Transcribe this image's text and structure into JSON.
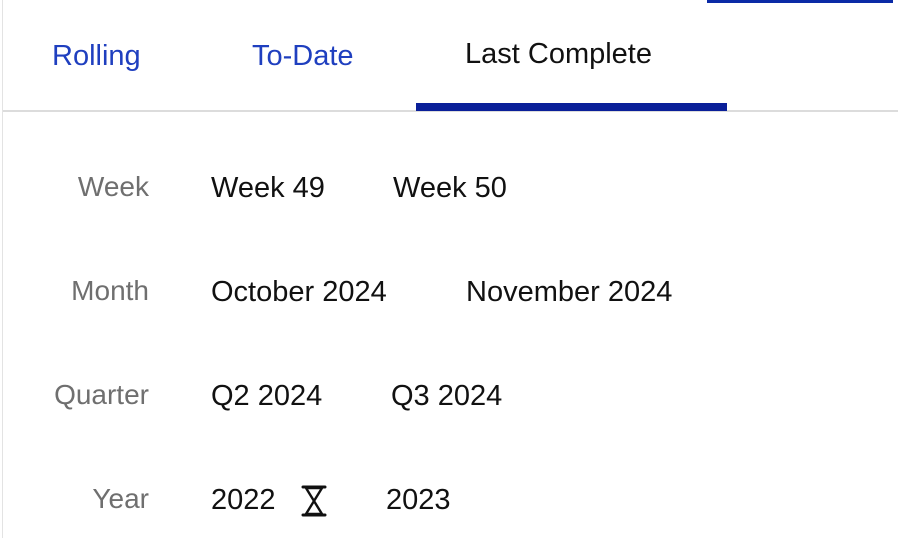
{
  "tabs": [
    {
      "label": "Rolling",
      "active": false
    },
    {
      "label": "To-Date",
      "active": false
    },
    {
      "label": "Last Complete",
      "active": true
    }
  ],
  "colors": {
    "accent": "#0a1f99",
    "tab_inactive": "#1f3fbf",
    "label_gray": "#6f6f6f"
  },
  "rows": {
    "week": {
      "label": "Week",
      "options": [
        "Week 49",
        "Week 50"
      ]
    },
    "month": {
      "label": "Month",
      "options": [
        "October 2024",
        "November 2024"
      ]
    },
    "quarter": {
      "label": "Quarter",
      "options": [
        "Q2 2024",
        "Q3 2024"
      ]
    },
    "year": {
      "label": "Year",
      "options": [
        "2022",
        "2023"
      ],
      "loading_icon": "hourglass-icon"
    }
  }
}
